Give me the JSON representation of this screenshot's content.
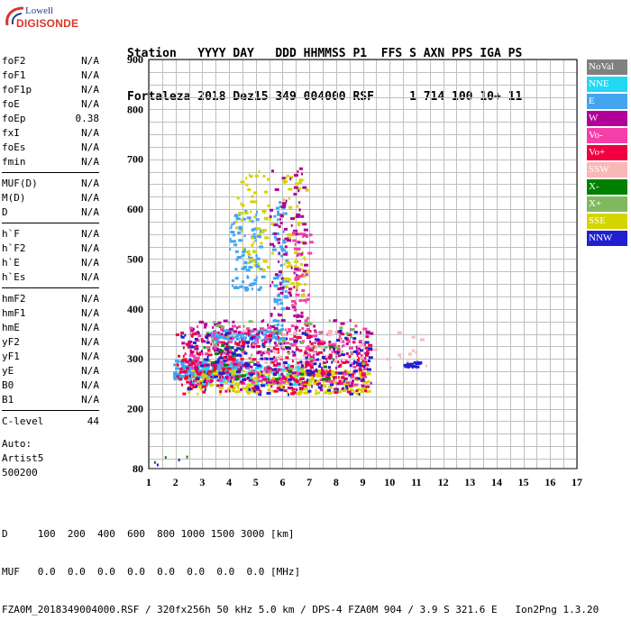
{
  "logo": {
    "line1": "Lowell",
    "line2": "DIGISONDE"
  },
  "header": {
    "line1": "Station   YYYY DAY   DDD HHMMSS P1  FFS S AXN PPS IGA PS",
    "line2": "Fortaleza 2018 Dez15 349 004000 RSF     1 714 100 10+ 11"
  },
  "params_groups": [
    [
      {
        "label": "foF2",
        "value": "N/A"
      },
      {
        "label": "foF1",
        "value": "N/A"
      },
      {
        "label": "foF1p",
        "value": "N/A"
      },
      {
        "label": "foE",
        "value": "N/A"
      },
      {
        "label": "foEp",
        "value": "0.38"
      },
      {
        "label": "fxI",
        "value": "N/A"
      },
      {
        "label": "foEs",
        "value": "N/A"
      },
      {
        "label": "fmin",
        "value": "N/A"
      }
    ],
    [
      {
        "label": "MUF(D)",
        "value": "N/A"
      },
      {
        "label": "M(D)",
        "value": "N/A"
      },
      {
        "label": "D",
        "value": "N/A"
      }
    ],
    [
      {
        "label": "h`F",
        "value": "N/A"
      },
      {
        "label": "h`F2",
        "value": "N/A"
      },
      {
        "label": "h`E",
        "value": "N/A"
      },
      {
        "label": "h`Es",
        "value": "N/A"
      }
    ],
    [
      {
        "label": "hmF2",
        "value": "N/A"
      },
      {
        "label": "hmF1",
        "value": "N/A"
      },
      {
        "label": "hmE",
        "value": "N/A"
      },
      {
        "label": "yF2",
        "value": "N/A"
      },
      {
        "label": "yF1",
        "value": "N/A"
      },
      {
        "label": "yE",
        "value": "N/A"
      },
      {
        "label": "B0",
        "value": "N/A"
      },
      {
        "label": "B1",
        "value": "N/A"
      }
    ],
    [
      {
        "label": "C-level",
        "value": "44"
      }
    ]
  ],
  "extra": {
    "line1": "Auto:",
    "line2": "Artist5",
    "line3": "500200"
  },
  "footer": {
    "line1": "D     100  200  400  600  800 1000 1500 3000 [km]",
    "line2": "MUF   0.0  0.0  0.0  0.0  0.0  0.0  0.0  0.0 [MHz]",
    "line3": "FZA0M_2018349004000.RSF / 320fx256h 50 kHz 5.0 km / DPS-4 FZA0M 904 / 3.9 S 321.6 E   Ion2Png 1.3.20"
  },
  "chart_data": {
    "type": "scatter",
    "xlim": [
      1,
      17
    ],
    "ylim": [
      80,
      900
    ],
    "x_ticks": [
      "1",
      "2",
      "3",
      "4",
      "5",
      "6",
      "7",
      "8",
      "9",
      "10",
      "11",
      "12",
      "13",
      "14",
      "15",
      "16",
      "17"
    ],
    "y_ticks": [
      "900",
      "800",
      "700",
      "600",
      "500",
      "400",
      "300",
      "200",
      "80"
    ],
    "legend": [
      {
        "name": "NoVal",
        "color": "#808080"
      },
      {
        "name": "NNE",
        "color": "#22d8f5"
      },
      {
        "name": "E",
        "color": "#43a5f0"
      },
      {
        "name": "W",
        "color": "#b00098"
      },
      {
        "name": "Vo-",
        "color": "#f53fa8"
      },
      {
        "name": "Vo+",
        "color": "#f00040"
      },
      {
        "name": "SSW",
        "color": "#f8b8b8"
      },
      {
        "name": "X-",
        "color": "#008000"
      },
      {
        "name": "X+",
        "color": "#80b860"
      },
      {
        "name": "SSE",
        "color": "#d4d400"
      },
      {
        "name": "NNW",
        "color": "#2020d0"
      }
    ],
    "traces": [
      {
        "name": "E",
        "color": "#43a5f0",
        "f1": 1.9,
        "f2": 4.4,
        "h1": 262,
        "h2": 300,
        "n": 260
      },
      {
        "name": "E",
        "color": "#43a5f0",
        "f1": 3.2,
        "f2": 5.9,
        "h1": 335,
        "h2": 360,
        "n": 120
      },
      {
        "name": "E",
        "color": "#43a5f0",
        "f1": 4.0,
        "f2": 5.2,
        "h1": 440,
        "h2": 600,
        "n": 90
      },
      {
        "name": "E",
        "color": "#43a5f0",
        "f1": 5.6,
        "f2": 6.1,
        "h1": 340,
        "h2": 620,
        "n": 70
      },
      {
        "name": "NNE",
        "color": "#22d8f5",
        "f1": 2.6,
        "f2": 7.0,
        "h1": 250,
        "h2": 290,
        "n": 140
      },
      {
        "name": "SSE",
        "color": "#d4d400",
        "f1": 2.4,
        "f2": 9.2,
        "h1": 232,
        "h2": 280,
        "n": 260
      },
      {
        "name": "SSE",
        "color": "#d4d400",
        "f1": 4.2,
        "f2": 5.6,
        "h1": 480,
        "h2": 680,
        "n": 60
      },
      {
        "name": "SSE",
        "color": "#d4d400",
        "f1": 6.0,
        "f2": 6.9,
        "h1": 420,
        "h2": 680,
        "n": 60
      },
      {
        "name": "W",
        "color": "#b00098",
        "f1": 2.2,
        "f2": 9.3,
        "h1": 240,
        "h2": 380,
        "n": 240
      },
      {
        "name": "W",
        "color": "#b00098",
        "f1": 5.5,
        "f2": 6.8,
        "h1": 380,
        "h2": 700,
        "n": 90
      },
      {
        "name": "Vo-",
        "color": "#f53fa8",
        "f1": 2.5,
        "f2": 9.0,
        "h1": 250,
        "h2": 370,
        "n": 200
      },
      {
        "name": "Vo-",
        "color": "#f53fa8",
        "f1": 6.3,
        "f2": 7.0,
        "h1": 360,
        "h2": 560,
        "n": 40
      },
      {
        "name": "Vo+",
        "color": "#f00040",
        "f1": 2.0,
        "f2": 9.2,
        "h1": 232,
        "h2": 360,
        "n": 240
      },
      {
        "name": "SSW",
        "color": "#f8b8b8",
        "f1": 3.2,
        "f2": 11.4,
        "h1": 280,
        "h2": 360,
        "n": 60
      },
      {
        "name": "X+",
        "color": "#80b860",
        "f1": 3.0,
        "f2": 9.0,
        "h1": 280,
        "h2": 380,
        "n": 50
      },
      {
        "name": "X-",
        "color": "#008000",
        "f1": 3.0,
        "f2": 8.0,
        "h1": 260,
        "h2": 330,
        "n": 30
      },
      {
        "name": "NNW",
        "color": "#2020d0",
        "f1": 2.0,
        "f2": 9.3,
        "h1": 230,
        "h2": 360,
        "n": 150
      },
      {
        "name": "NNW",
        "color": "#2020d0",
        "f1": 10.5,
        "f2": 11.1,
        "h1": 285,
        "h2": 300,
        "n": 20
      }
    ]
  }
}
